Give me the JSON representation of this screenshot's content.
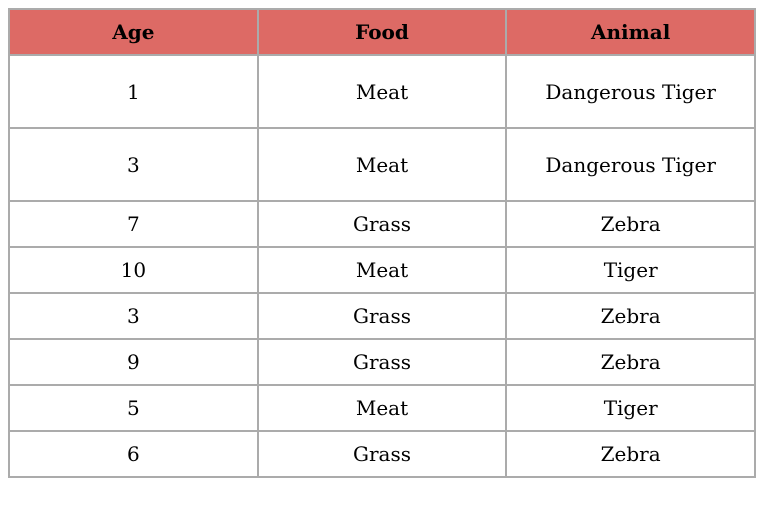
{
  "table": {
    "columns": [
      "Age",
      "Food",
      "Animal"
    ],
    "rows": [
      [
        "1",
        "Meat",
        "Dangerous Tiger"
      ],
      [
        "3",
        "Meat",
        "Dangerous Tiger"
      ],
      [
        "7",
        "Grass",
        "Zebra"
      ],
      [
        "10",
        "Meat",
        "Tiger"
      ],
      [
        "3",
        "Grass",
        "Zebra"
      ],
      [
        "9",
        "Grass",
        "Zebra"
      ],
      [
        "5",
        "Meat",
        "Tiger"
      ],
      [
        "6",
        "Grass",
        "Zebra"
      ]
    ]
  },
  "colors": {
    "header_bg": "#dd6a65",
    "border": "#ababab",
    "outer_border": "#9e9e9e",
    "text": "#000000",
    "page_bg": "#ffffff"
  }
}
